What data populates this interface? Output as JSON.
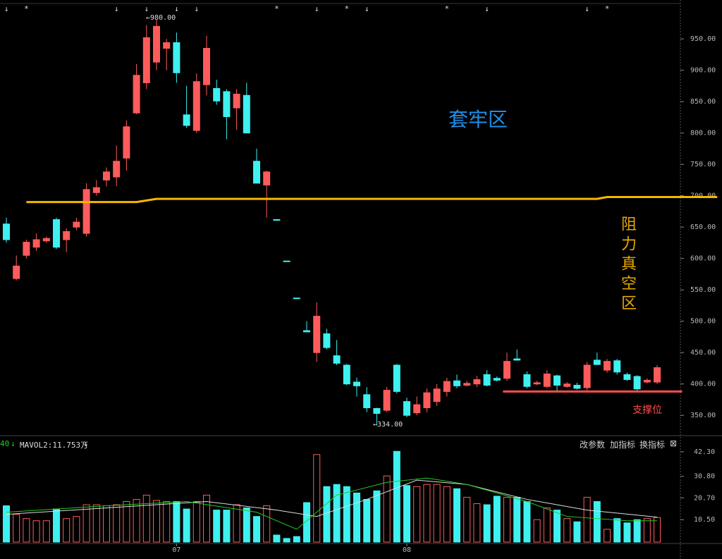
{
  "chart_data": {
    "type": "candlestick",
    "up_color": "#ff5b5b",
    "down_color": "#3ff0f0",
    "open": [
      655,
      568,
      605,
      618,
      628,
      662,
      630,
      650,
      640,
      705,
      725,
      730,
      760,
      832,
      880,
      913,
      935,
      944,
      829,
      804,
      877,
      871,
      866,
      840,
      860,
      755,
      717,
      662,
      596,
      537,
      485,
      450,
      480,
      445,
      430,
      403,
      383,
      361,
      358,
      430,
      372,
      354,
      362,
      372,
      388,
      405,
      398,
      400,
      415,
      409,
      409,
      440,
      415,
      400,
      396,
      413,
      396,
      398,
      394,
      438,
      422,
      437,
      415,
      412,
      403,
      403
    ],
    "high": [
      665,
      605,
      630,
      640,
      635,
      665,
      648,
      665,
      720,
      725,
      745,
      780,
      820,
      910,
      972,
      980,
      950,
      960,
      875,
      895,
      955,
      885,
      870,
      870,
      880,
      775,
      740,
      662,
      596,
      537,
      500,
      530,
      488,
      470,
      432,
      410,
      395,
      362,
      395,
      432,
      378,
      380,
      393,
      400,
      410,
      415,
      405,
      413,
      422,
      412,
      450,
      455,
      420,
      405,
      422,
      415,
      403,
      402,
      435,
      450,
      440,
      440,
      418,
      414,
      409,
      430
    ],
    "low": [
      625,
      565,
      600,
      612,
      625,
      615,
      610,
      645,
      635,
      700,
      715,
      715,
      740,
      830,
      870,
      900,
      900,
      880,
      808,
      800,
      860,
      845,
      790,
      805,
      800,
      720,
      665,
      662,
      596,
      537,
      483,
      435,
      455,
      430,
      398,
      380,
      355,
      334,
      355,
      385,
      347,
      350,
      355,
      365,
      380,
      393,
      396,
      395,
      396,
      404,
      405,
      437,
      393,
      398,
      393,
      388,
      394,
      391,
      390,
      430,
      418,
      415,
      405,
      390,
      401,
      400
    ],
    "close": [
      630,
      588,
      626,
      630,
      632,
      618,
      643,
      658,
      710,
      713,
      738,
      755,
      810,
      892,
      952,
      970,
      944,
      896,
      812,
      882,
      935,
      851,
      826,
      862,
      800,
      720,
      738,
      662,
      596,
      537,
      483,
      508,
      458,
      433,
      400,
      397,
      362,
      353,
      390,
      388,
      350,
      367,
      386,
      392,
      404,
      397,
      401,
      407,
      398,
      406,
      436,
      438,
      396,
      402,
      416,
      398,
      400,
      393,
      430,
      431,
      436,
      419,
      407,
      392,
      406,
      426
    ],
    "ylim": [
      321,
      1012
    ],
    "yticks": [
      {
        "value": 950,
        "label": "950.00"
      },
      {
        "value": 900,
        "label": "900.00"
      },
      {
        "value": 850,
        "label": "850.00"
      },
      {
        "value": 800,
        "label": "800.00"
      },
      {
        "value": 750,
        "label": "750.00"
      },
      {
        "value": 700,
        "label": "700.00"
      },
      {
        "value": 650,
        "label": "650.00"
      },
      {
        "value": 600,
        "label": "600.00"
      },
      {
        "value": 550,
        "label": "550.00"
      },
      {
        "value": 500,
        "label": "500.00"
      },
      {
        "value": 450,
        "label": "450.00"
      },
      {
        "value": 400,
        "label": "400.00"
      },
      {
        "value": 350,
        "label": "350.00"
      }
    ],
    "high_label": "←980.00",
    "low_label": "←334.00",
    "event_markers": [
      {
        "index": 0,
        "symbol": "↓"
      },
      {
        "index": 2,
        "symbol": "*"
      },
      {
        "index": 11,
        "symbol": "↓"
      },
      {
        "index": 14,
        "symbol": "↓"
      },
      {
        "index": 17,
        "symbol": "↓"
      },
      {
        "index": 19,
        "symbol": "↓"
      },
      {
        "index": 27,
        "symbol": "*"
      },
      {
        "index": 31,
        "symbol": "↓"
      },
      {
        "index": 34,
        "symbol": "*"
      },
      {
        "index": 36,
        "symbol": "↓"
      },
      {
        "index": 44,
        "symbol": "*"
      },
      {
        "index": 48,
        "symbol": "↓"
      },
      {
        "index": 58,
        "symbol": "↓"
      },
      {
        "index": 60,
        "symbol": "*"
      }
    ],
    "resistance_line": {
      "color": "#f5b800",
      "x": [
        2,
        13,
        15,
        59,
        60,
        71
      ],
      "values": [
        690,
        690,
        695,
        695,
        698,
        698
      ]
    },
    "support_line": {
      "color": "#ff4d4d",
      "x": [
        49.6,
        67.5
      ],
      "values": [
        388,
        388
      ]
    },
    "annotations": [
      "套牢区",
      "阻力真空区",
      "支撑位"
    ],
    "volume": {
      "values": [
        17,
        13,
        11,
        10,
        10,
        15.5,
        11,
        12,
        17.5,
        17.5,
        17,
        17.5,
        19,
        20,
        22,
        19.5,
        19,
        19,
        15.5,
        19,
        22,
        15,
        15,
        17.5,
        16,
        12,
        17,
        3.3,
        1.7,
        2.6,
        18.5,
        41,
        26,
        27,
        26,
        23,
        20,
        24,
        31,
        42.5,
        26.5,
        26,
        27,
        27,
        26,
        25,
        21,
        18,
        17.5,
        21.5,
        21,
        21,
        19,
        10.5,
        16,
        15,
        11,
        9.5,
        21,
        19,
        6,
        11,
        9,
        10.5,
        11,
        11.5
      ],
      "ylim": [
        0,
        45.9
      ],
      "yticks": [
        {
          "value": 42.3,
          "label": "42.30"
        },
        {
          "value": 30.8,
          "label": "30.80"
        },
        {
          "value": 20.7,
          "label": "20.70"
        },
        {
          "value": 10.5,
          "label": "10.50"
        }
      ],
      "ma_lines": [
        {
          "color": "#dddddd",
          "x": [
            0,
            10,
            20,
            27,
            31,
            36,
            41,
            46,
            52,
            58,
            65
          ],
          "values": [
            13,
            16,
            19,
            15,
            12,
            20,
            29,
            27,
            20,
            15,
            11.7
          ]
        },
        {
          "color": "#22cc22",
          "x": [
            0,
            10,
            18,
            25,
            29,
            33,
            38,
            42,
            46,
            52,
            56,
            59,
            62,
            65
          ],
          "values": [
            14,
            17,
            19,
            14,
            6,
            22,
            28,
            30,
            27,
            19,
            12,
            11,
            10,
            10
          ]
        }
      ],
      "legend": [
        "40",
        "↓",
        "MAVOL2:11.753万",
        "↓"
      ],
      "buttons": [
        "改参数",
        "加指标",
        "换指标",
        "⊠"
      ]
    },
    "xlabels": [
      {
        "index": 17,
        "label": "07"
      },
      {
        "index": 40,
        "label": "08"
      }
    ]
  }
}
